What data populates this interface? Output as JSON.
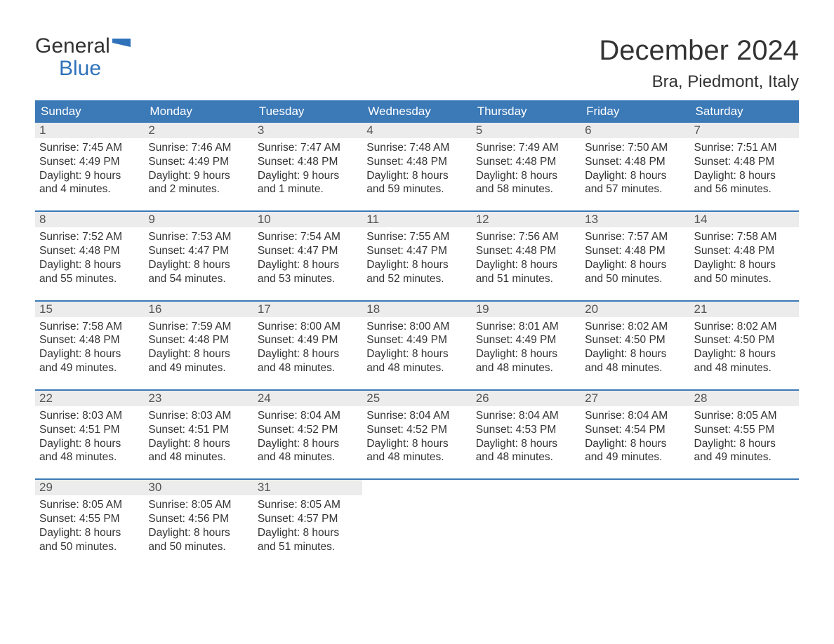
{
  "logo": {
    "line1": "General",
    "line2": "Blue"
  },
  "title": "December 2024",
  "location": "Bra, Piedmont, Italy",
  "colors": {
    "header_bg": "#3b79b7",
    "header_text": "#ffffff",
    "daynum_bg": "#ececec",
    "daynum_text": "#555555",
    "body_text": "#333333",
    "week_divider": "#3b79b7",
    "logo_blue": "#2f72b9",
    "page_bg": "#ffffff"
  },
  "daysOfWeek": [
    "Sunday",
    "Monday",
    "Tuesday",
    "Wednesday",
    "Thursday",
    "Friday",
    "Saturday"
  ],
  "weeks": [
    [
      {
        "n": "1",
        "sunrise": "Sunrise: 7:45 AM",
        "sunset": "Sunset: 4:49 PM",
        "dl1": "Daylight: 9 hours",
        "dl2": "and 4 minutes."
      },
      {
        "n": "2",
        "sunrise": "Sunrise: 7:46 AM",
        "sunset": "Sunset: 4:49 PM",
        "dl1": "Daylight: 9 hours",
        "dl2": "and 2 minutes."
      },
      {
        "n": "3",
        "sunrise": "Sunrise: 7:47 AM",
        "sunset": "Sunset: 4:48 PM",
        "dl1": "Daylight: 9 hours",
        "dl2": "and 1 minute."
      },
      {
        "n": "4",
        "sunrise": "Sunrise: 7:48 AM",
        "sunset": "Sunset: 4:48 PM",
        "dl1": "Daylight: 8 hours",
        "dl2": "and 59 minutes."
      },
      {
        "n": "5",
        "sunrise": "Sunrise: 7:49 AM",
        "sunset": "Sunset: 4:48 PM",
        "dl1": "Daylight: 8 hours",
        "dl2": "and 58 minutes."
      },
      {
        "n": "6",
        "sunrise": "Sunrise: 7:50 AM",
        "sunset": "Sunset: 4:48 PM",
        "dl1": "Daylight: 8 hours",
        "dl2": "and 57 minutes."
      },
      {
        "n": "7",
        "sunrise": "Sunrise: 7:51 AM",
        "sunset": "Sunset: 4:48 PM",
        "dl1": "Daylight: 8 hours",
        "dl2": "and 56 minutes."
      }
    ],
    [
      {
        "n": "8",
        "sunrise": "Sunrise: 7:52 AM",
        "sunset": "Sunset: 4:48 PM",
        "dl1": "Daylight: 8 hours",
        "dl2": "and 55 minutes."
      },
      {
        "n": "9",
        "sunrise": "Sunrise: 7:53 AM",
        "sunset": "Sunset: 4:47 PM",
        "dl1": "Daylight: 8 hours",
        "dl2": "and 54 minutes."
      },
      {
        "n": "10",
        "sunrise": "Sunrise: 7:54 AM",
        "sunset": "Sunset: 4:47 PM",
        "dl1": "Daylight: 8 hours",
        "dl2": "and 53 minutes."
      },
      {
        "n": "11",
        "sunrise": "Sunrise: 7:55 AM",
        "sunset": "Sunset: 4:47 PM",
        "dl1": "Daylight: 8 hours",
        "dl2": "and 52 minutes."
      },
      {
        "n": "12",
        "sunrise": "Sunrise: 7:56 AM",
        "sunset": "Sunset: 4:48 PM",
        "dl1": "Daylight: 8 hours",
        "dl2": "and 51 minutes."
      },
      {
        "n": "13",
        "sunrise": "Sunrise: 7:57 AM",
        "sunset": "Sunset: 4:48 PM",
        "dl1": "Daylight: 8 hours",
        "dl2": "and 50 minutes."
      },
      {
        "n": "14",
        "sunrise": "Sunrise: 7:58 AM",
        "sunset": "Sunset: 4:48 PM",
        "dl1": "Daylight: 8 hours",
        "dl2": "and 50 minutes."
      }
    ],
    [
      {
        "n": "15",
        "sunrise": "Sunrise: 7:58 AM",
        "sunset": "Sunset: 4:48 PM",
        "dl1": "Daylight: 8 hours",
        "dl2": "and 49 minutes."
      },
      {
        "n": "16",
        "sunrise": "Sunrise: 7:59 AM",
        "sunset": "Sunset: 4:48 PM",
        "dl1": "Daylight: 8 hours",
        "dl2": "and 49 minutes."
      },
      {
        "n": "17",
        "sunrise": "Sunrise: 8:00 AM",
        "sunset": "Sunset: 4:49 PM",
        "dl1": "Daylight: 8 hours",
        "dl2": "and 48 minutes."
      },
      {
        "n": "18",
        "sunrise": "Sunrise: 8:00 AM",
        "sunset": "Sunset: 4:49 PM",
        "dl1": "Daylight: 8 hours",
        "dl2": "and 48 minutes."
      },
      {
        "n": "19",
        "sunrise": "Sunrise: 8:01 AM",
        "sunset": "Sunset: 4:49 PM",
        "dl1": "Daylight: 8 hours",
        "dl2": "and 48 minutes."
      },
      {
        "n": "20",
        "sunrise": "Sunrise: 8:02 AM",
        "sunset": "Sunset: 4:50 PM",
        "dl1": "Daylight: 8 hours",
        "dl2": "and 48 minutes."
      },
      {
        "n": "21",
        "sunrise": "Sunrise: 8:02 AM",
        "sunset": "Sunset: 4:50 PM",
        "dl1": "Daylight: 8 hours",
        "dl2": "and 48 minutes."
      }
    ],
    [
      {
        "n": "22",
        "sunrise": "Sunrise: 8:03 AM",
        "sunset": "Sunset: 4:51 PM",
        "dl1": "Daylight: 8 hours",
        "dl2": "and 48 minutes."
      },
      {
        "n": "23",
        "sunrise": "Sunrise: 8:03 AM",
        "sunset": "Sunset: 4:51 PM",
        "dl1": "Daylight: 8 hours",
        "dl2": "and 48 minutes."
      },
      {
        "n": "24",
        "sunrise": "Sunrise: 8:04 AM",
        "sunset": "Sunset: 4:52 PM",
        "dl1": "Daylight: 8 hours",
        "dl2": "and 48 minutes."
      },
      {
        "n": "25",
        "sunrise": "Sunrise: 8:04 AM",
        "sunset": "Sunset: 4:52 PM",
        "dl1": "Daylight: 8 hours",
        "dl2": "and 48 minutes."
      },
      {
        "n": "26",
        "sunrise": "Sunrise: 8:04 AM",
        "sunset": "Sunset: 4:53 PM",
        "dl1": "Daylight: 8 hours",
        "dl2": "and 48 minutes."
      },
      {
        "n": "27",
        "sunrise": "Sunrise: 8:04 AM",
        "sunset": "Sunset: 4:54 PM",
        "dl1": "Daylight: 8 hours",
        "dl2": "and 49 minutes."
      },
      {
        "n": "28",
        "sunrise": "Sunrise: 8:05 AM",
        "sunset": "Sunset: 4:55 PM",
        "dl1": "Daylight: 8 hours",
        "dl2": "and 49 minutes."
      }
    ],
    [
      {
        "n": "29",
        "sunrise": "Sunrise: 8:05 AM",
        "sunset": "Sunset: 4:55 PM",
        "dl1": "Daylight: 8 hours",
        "dl2": "and 50 minutes."
      },
      {
        "n": "30",
        "sunrise": "Sunrise: 8:05 AM",
        "sunset": "Sunset: 4:56 PM",
        "dl1": "Daylight: 8 hours",
        "dl2": "and 50 minutes."
      },
      {
        "n": "31",
        "sunrise": "Sunrise: 8:05 AM",
        "sunset": "Sunset: 4:57 PM",
        "dl1": "Daylight: 8 hours",
        "dl2": "and 51 minutes."
      },
      {
        "empty": true
      },
      {
        "empty": true
      },
      {
        "empty": true
      },
      {
        "empty": true
      }
    ]
  ]
}
